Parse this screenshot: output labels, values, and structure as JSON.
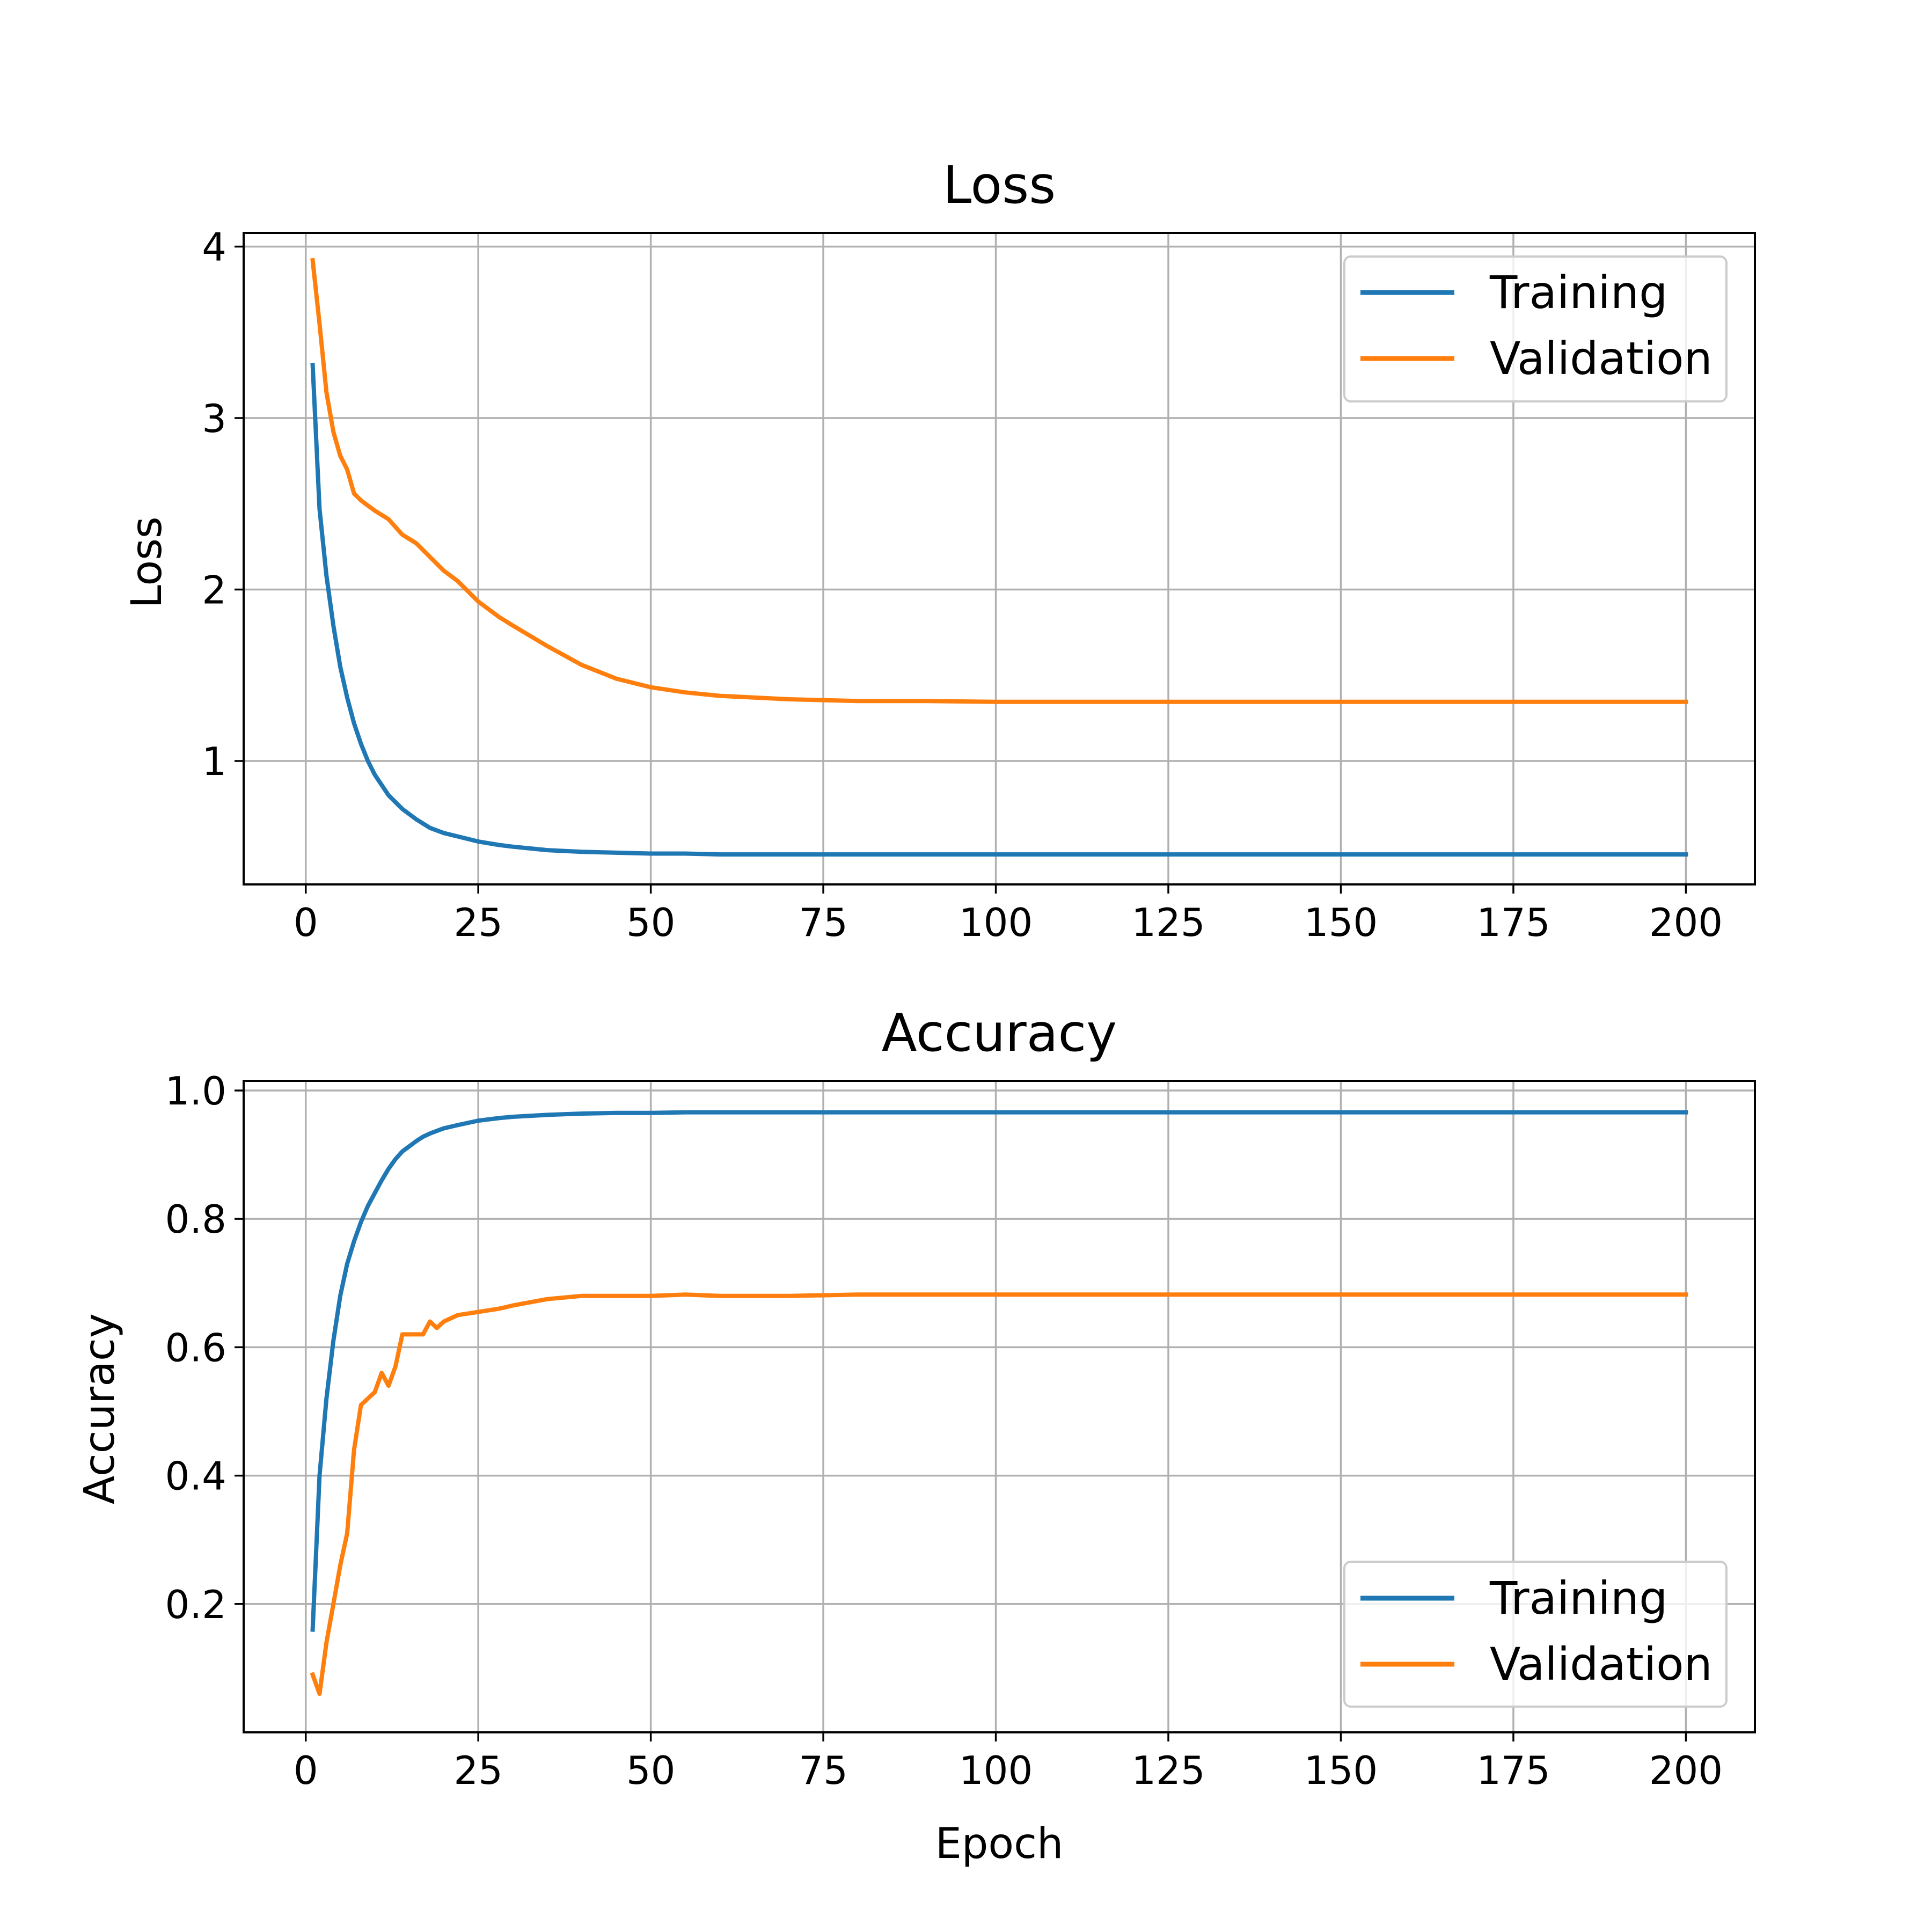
{
  "charts": [
    {
      "title": "Loss",
      "xlabel": "",
      "ylabel": "Loss",
      "legend_entries": [
        "Training",
        "Validation"
      ]
    },
    {
      "title": "Accuracy",
      "xlabel": "Epoch",
      "ylabel": "Accuracy",
      "legend_entries": [
        "Training",
        "Validation"
      ]
    }
  ],
  "chart_data": [
    {
      "type": "line",
      "title": "Loss",
      "xlabel": "",
      "ylabel": "Loss",
      "xlim": [
        -9,
        210
      ],
      "ylim": [
        0.28,
        4.08
      ],
      "xticks": [
        0,
        25,
        50,
        75,
        100,
        125,
        150,
        175,
        200
      ],
      "yticks": [
        1,
        2,
        3,
        4
      ],
      "grid": true,
      "legend_position": "upper right",
      "x": [
        1,
        2,
        3,
        4,
        5,
        6,
        7,
        8,
        9,
        10,
        12,
        14,
        16,
        18,
        20,
        22,
        25,
        28,
        30,
        35,
        40,
        45,
        50,
        55,
        60,
        65,
        70,
        75,
        80,
        90,
        100,
        125,
        150,
        175,
        200
      ],
      "series": [
        {
          "name": "Training",
          "color": "#1f77b4",
          "values": [
            3.31,
            2.47,
            2.08,
            1.79,
            1.55,
            1.37,
            1.22,
            1.1,
            1.0,
            0.92,
            0.8,
            0.72,
            0.66,
            0.61,
            0.58,
            0.56,
            0.53,
            0.51,
            0.5,
            0.48,
            0.47,
            0.465,
            0.46,
            0.46,
            0.455,
            0.455,
            0.455,
            0.455,
            0.455,
            0.455,
            0.455,
            0.455,
            0.455,
            0.455,
            0.455
          ]
        },
        {
          "name": "Validation",
          "color": "#ff7f0e",
          "values": [
            3.92,
            3.55,
            3.15,
            2.92,
            2.78,
            2.7,
            2.56,
            2.52,
            2.49,
            2.46,
            2.41,
            2.32,
            2.27,
            2.19,
            2.11,
            2.05,
            1.93,
            1.84,
            1.79,
            1.67,
            1.56,
            1.48,
            1.43,
            1.4,
            1.38,
            1.37,
            1.36,
            1.355,
            1.35,
            1.35,
            1.345,
            1.345,
            1.345,
            1.345,
            1.345
          ]
        }
      ]
    },
    {
      "type": "line",
      "title": "Accuracy",
      "xlabel": "Epoch",
      "ylabel": "Accuracy",
      "xlim": [
        -9,
        210
      ],
      "ylim": [
        0.0,
        1.015
      ],
      "xticks": [
        0,
        25,
        50,
        75,
        100,
        125,
        150,
        175,
        200
      ],
      "yticks": [
        0.2,
        0.4,
        0.6,
        0.8,
        1.0
      ],
      "ytick_labels": [
        "0.2",
        "0.4",
        "0.6",
        "0.8",
        "1.0"
      ],
      "grid": true,
      "legend_position": "lower right",
      "x": [
        1,
        2,
        3,
        4,
        5,
        6,
        7,
        8,
        9,
        10,
        11,
        12,
        13,
        14,
        15,
        16,
        17,
        18,
        19,
        20,
        22,
        25,
        28,
        30,
        35,
        40,
        45,
        50,
        55,
        60,
        70,
        80,
        100,
        125,
        150,
        175,
        200
      ],
      "series": [
        {
          "name": "Training",
          "color": "#1f77b4",
          "values": [
            0.16,
            0.4,
            0.52,
            0.61,
            0.68,
            0.73,
            0.765,
            0.795,
            0.82,
            0.84,
            0.86,
            0.878,
            0.893,
            0.905,
            0.913,
            0.921,
            0.928,
            0.933,
            0.937,
            0.941,
            0.946,
            0.953,
            0.957,
            0.959,
            0.962,
            0.964,
            0.965,
            0.965,
            0.966,
            0.966,
            0.966,
            0.966,
            0.966,
            0.966,
            0.966,
            0.966,
            0.966
          ]
        },
        {
          "name": "Validation",
          "color": "#ff7f0e",
          "values": [
            0.09,
            0.06,
            0.14,
            0.2,
            0.26,
            0.31,
            0.44,
            0.51,
            0.52,
            0.53,
            0.56,
            0.54,
            0.57,
            0.62,
            0.62,
            0.62,
            0.62,
            0.64,
            0.63,
            0.64,
            0.65,
            0.655,
            0.66,
            0.665,
            0.675,
            0.68,
            0.68,
            0.68,
            0.682,
            0.68,
            0.68,
            0.682,
            0.682,
            0.682,
            0.682,
            0.682,
            0.682
          ]
        }
      ]
    }
  ]
}
